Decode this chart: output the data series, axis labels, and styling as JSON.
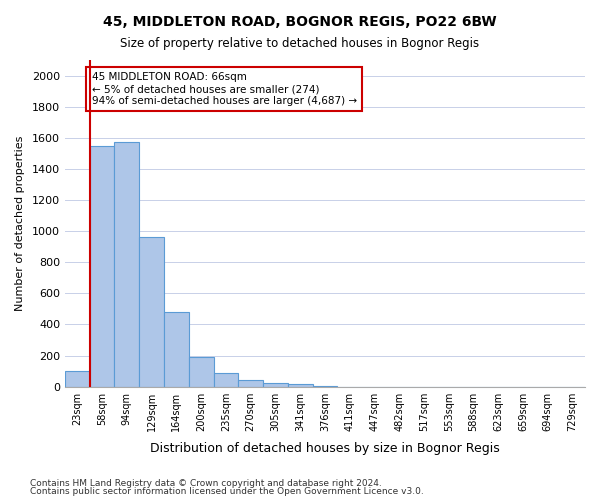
{
  "title1": "45, MIDDLETON ROAD, BOGNOR REGIS, PO22 6BW",
  "title2": "Size of property relative to detached houses in Bognor Regis",
  "xlabel": "Distribution of detached houses by size in Bognor Regis",
  "ylabel": "Number of detached properties",
  "footnote1": "Contains HM Land Registry data © Crown copyright and database right 2024.",
  "footnote2": "Contains public sector information licensed under the Open Government Licence v3.0.",
  "bins": [
    "23sqm",
    "58sqm",
    "94sqm",
    "129sqm",
    "164sqm",
    "200sqm",
    "235sqm",
    "270sqm",
    "305sqm",
    "341sqm",
    "376sqm",
    "411sqm",
    "447sqm",
    "482sqm",
    "517sqm",
    "553sqm",
    "588sqm",
    "623sqm",
    "659sqm",
    "694sqm",
    "729sqm"
  ],
  "values": [
    100,
    1550,
    1570,
    960,
    480,
    190,
    85,
    40,
    25,
    20,
    5,
    0,
    0,
    0,
    0,
    0,
    0,
    0,
    0,
    0,
    0
  ],
  "bar_color": "#aec6e8",
  "bar_edge_color": "#5b9bd5",
  "annotation_text": "45 MIDDLETON ROAD: 66sqm\n← 5% of detached houses are smaller (274)\n94% of semi-detached houses are larger (4,687) →",
  "annotation_box_color": "#ffffff",
  "annotation_box_edge_color": "#cc0000",
  "red_line_x": 0.5,
  "ylim": [
    0,
    2100
  ],
  "yticks": [
    0,
    200,
    400,
    600,
    800,
    1000,
    1200,
    1400,
    1600,
    1800,
    2000
  ],
  "background_color": "#ffffff",
  "grid_color": "#c8d0e8"
}
